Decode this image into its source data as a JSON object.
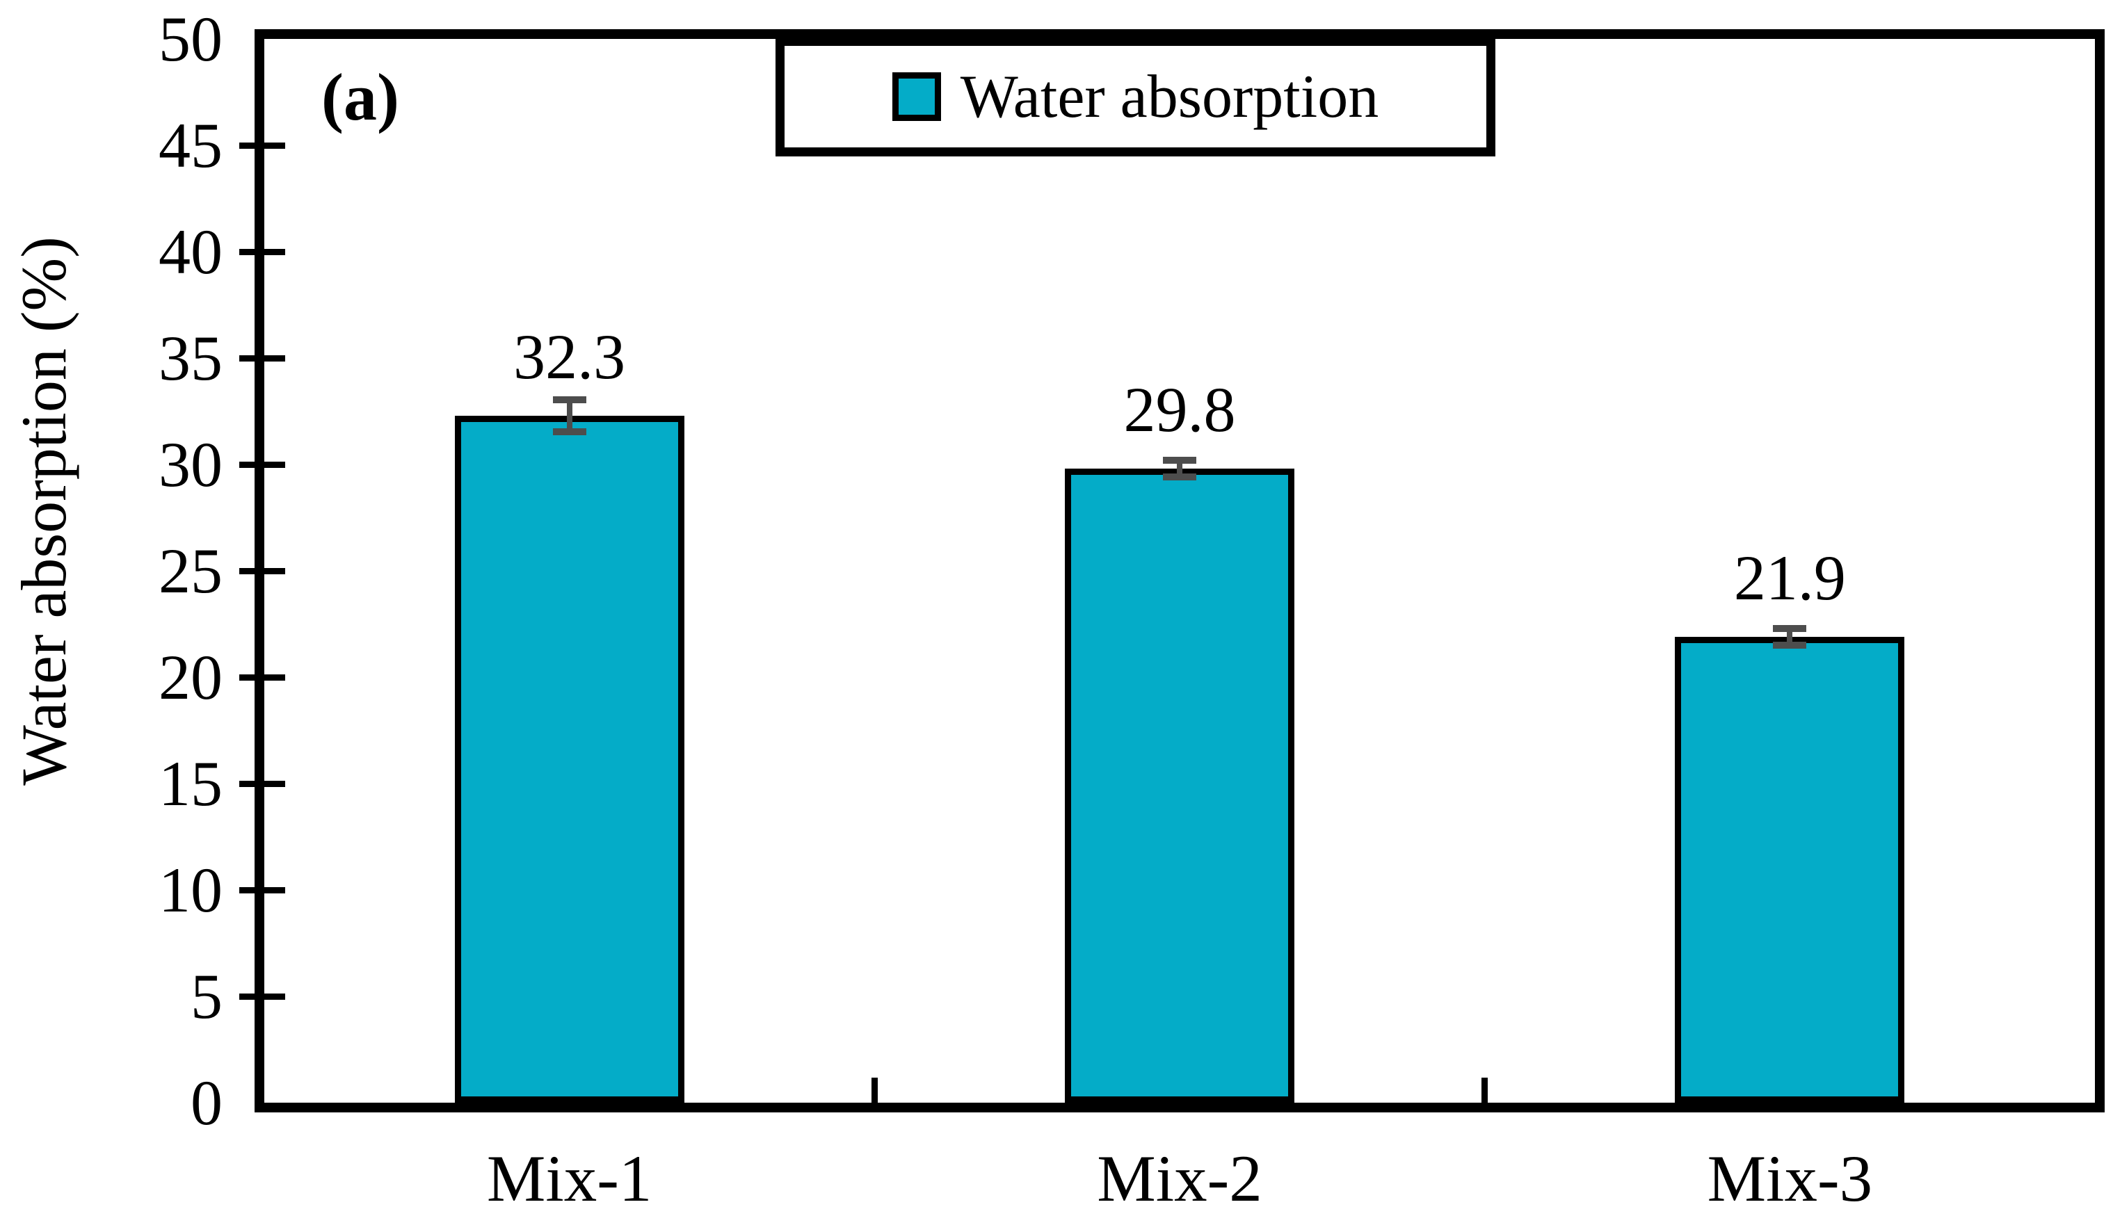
{
  "figure": {
    "panel_label": "(a)",
    "background": "#ffffff"
  },
  "chart_data": {
    "type": "bar",
    "title": "",
    "categories": [
      "Mix-1",
      "Mix-2",
      "Mix-3"
    ],
    "series": [
      {
        "name": "Water absorption",
        "values": [
          32.3,
          29.8,
          21.9
        ],
        "errors": [
          0.75,
          0.4,
          0.4
        ]
      }
    ],
    "data_labels": [
      "32.3",
      "29.8",
      "21.9"
    ],
    "xlabel": "",
    "ylabel": "Water absorption (%)",
    "ylim": [
      0,
      50
    ],
    "ytick_step": 5,
    "yticks": [
      0,
      5,
      10,
      15,
      20,
      25,
      30,
      35,
      40,
      45,
      50
    ],
    "grid": false,
    "legend": {
      "position": "top-center",
      "entries": [
        {
          "label": "Water absorption",
          "color": "#04ACC8"
        }
      ]
    },
    "bar_color": "#04ACC8",
    "bar_border_color": "#000000",
    "error_bar_color": "#4D4D4D",
    "axis_color": "#000000",
    "text_color": "#000000"
  }
}
